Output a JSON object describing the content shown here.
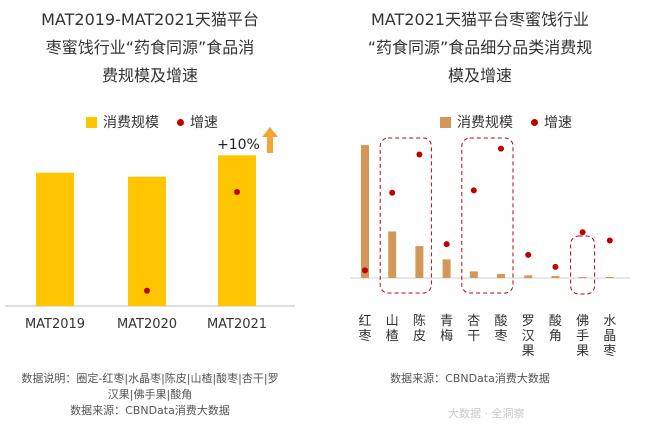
{
  "left": {
    "title_lines": [
      "MAT2019-MAT2021天猫平台",
      "枣蜜饯行业“药食同源”食品消",
      "费规模及增速"
    ],
    "legend": {
      "bar": "消费规模",
      "dot": "增速"
    },
    "annotation": "+10%",
    "note_lines": [
      "数据说明：圈定-红枣|水晶枣|陈皮|山楂|酸枣|杏干|罗",
      "汉果|佛手果|酸角",
      "数据来源：CBNData消费大数据"
    ]
  },
  "right": {
    "title_lines": [
      "MAT2021天猫平台枣蜜饯行业",
      "“药食同源”食品细分品类消费规",
      "模及增速"
    ],
    "legend": {
      "bar": "消费规模",
      "dot": "增速"
    },
    "note_lines": [
      "数据来源：CBNData消费大数据"
    ]
  },
  "watermark": "大数据 · 全洞察",
  "colors": {
    "left_bar": "#FFC600",
    "right_bar": "#D4975A",
    "dot": "#C00000",
    "arrow": "#F5A533",
    "highlight": "#C00000"
  },
  "chart_data": [
    {
      "type": "bar",
      "title": "MAT2019-MAT2021天猫平台枣蜜饯行业“药食同源”食品消费规模及增速",
      "categories": [
        "MAT2019",
        "MAT2020",
        "MAT2021"
      ],
      "series": [
        {
          "name": "消费规模",
          "values": [
            100,
            97,
            113
          ]
        },
        {
          "name": "增速",
          "values": [
            null,
            -3,
            10
          ]
        }
      ],
      "annotations": [
        "+10%"
      ],
      "grid": false,
      "legend": "top"
    },
    {
      "type": "bar",
      "title": "MAT2021天猫平台枣蜜饯行业“药食同源”食品细分品类消费规模及增速",
      "categories": [
        "红枣",
        "山楂",
        "陈皮",
        "青梅",
        "杏干",
        "酸枣",
        "罗汉果",
        "酸角",
        "佛手果",
        "水晶枣"
      ],
      "series": [
        {
          "name": "消费规模",
          "values": [
            100,
            35,
            24,
            14,
            5,
            3,
            2,
            1.5,
            0.5,
            0.5
          ]
        },
        {
          "name": "增速",
          "values": [
            -5,
            60,
            92,
            17,
            62,
            97,
            8,
            -2,
            27,
            20
          ]
        }
      ],
      "highlight_groups": [
        [
          "山楂",
          "陈皮"
        ],
        [
          "杏干",
          "酸枣"
        ],
        [
          "佛手果"
        ]
      ],
      "grid": false,
      "legend": "top"
    }
  ]
}
